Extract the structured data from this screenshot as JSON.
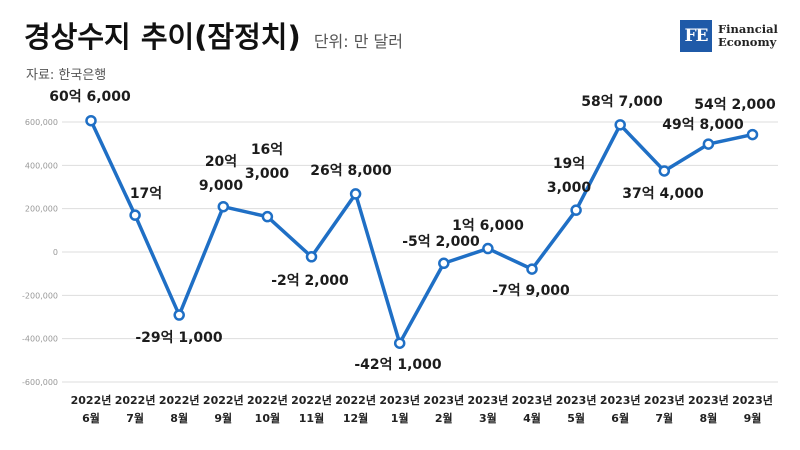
{
  "title": "경상수지 추이(잠정치)",
  "unit": "단위: 만 달러",
  "source": "자료: 한국은행",
  "logo": {
    "mark": "FE",
    "line1": "Financial",
    "line2": "Economy"
  },
  "chart_data": {
    "type": "line",
    "title": "경상수지 추이(잠정치)",
    "ylabel": "",
    "xlabel": "",
    "ylim": [
      -600000,
      600000
    ],
    "yticks": [
      600000,
      400000,
      200000,
      0,
      -200000,
      -400000,
      -600000
    ],
    "ytick_labels": [
      "600,000",
      "400,000",
      "200,000",
      "0",
      "-200,000",
      "-400,000",
      "-600,000"
    ],
    "grid": true,
    "categories": [
      [
        "2022년",
        "6월"
      ],
      [
        "2022년",
        "7월"
      ],
      [
        "2022년",
        "8월"
      ],
      [
        "2022년",
        "9월"
      ],
      [
        "2022년",
        "10월"
      ],
      [
        "2022년",
        "11월"
      ],
      [
        "2022년",
        "12월"
      ],
      [
        "2023년",
        "1월"
      ],
      [
        "2023년",
        "2월"
      ],
      [
        "2023년",
        "3월"
      ],
      [
        "2023년",
        "4월"
      ],
      [
        "2023년",
        "5월"
      ],
      [
        "2023년",
        "6월"
      ],
      [
        "2023년",
        "7월"
      ],
      [
        "2023년",
        "8월"
      ],
      [
        "2023년",
        "9월"
      ]
    ],
    "series": [
      {
        "values": [
          606000,
          170000,
          -291000,
          209000,
          163000,
          -22000,
          268000,
          -421000,
          -52000,
          16000,
          -79000,
          193000,
          587000,
          374000,
          498000,
          542000
        ]
      }
    ],
    "data_labels": [
      [
        "60억 6,000"
      ],
      [
        "17억"
      ],
      [
        "-29억 1,000"
      ],
      [
        "20억",
        "9,000"
      ],
      [
        "16억",
        "3,000"
      ],
      [
        "-2억 2,000"
      ],
      [
        "26억 8,000"
      ],
      [
        "-42억 1,000"
      ],
      [
        "-5억 2,000"
      ],
      [
        "1억 6,000"
      ],
      [
        "-7억 9,000"
      ],
      [
        "19억",
        "3,000"
      ],
      [
        "58억 7,000"
      ],
      [
        "37억 4,000"
      ],
      [
        "49억 8,000"
      ],
      [
        "54억 2,000"
      ]
    ],
    "line_color": "#1f6fc5",
    "grid_color": "#dddddd"
  }
}
